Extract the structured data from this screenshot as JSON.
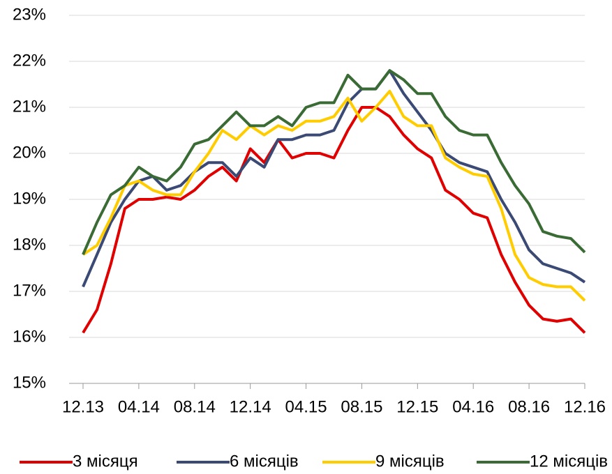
{
  "chart_data": {
    "type": "line",
    "categories": [
      "12.13",
      null,
      null,
      null,
      "04.14",
      null,
      null,
      null,
      "08.14",
      null,
      null,
      null,
      "12.14",
      null,
      null,
      null,
      "04.15",
      null,
      null,
      null,
      "08.15",
      null,
      null,
      null,
      "12.15",
      null,
      null,
      null,
      "04.16",
      null,
      null,
      null,
      "08.16",
      null,
      null,
      null,
      "12.16"
    ],
    "series": [
      {
        "name": "3 місяця",
        "color": "#e00000",
        "values": [
          16.1,
          16.6,
          17.6,
          18.8,
          19.0,
          19.0,
          19.05,
          19.0,
          19.2,
          19.5,
          19.7,
          19.4,
          20.1,
          19.8,
          20.3,
          19.9,
          20.0,
          20.0,
          19.9,
          20.5,
          21.0,
          21.0,
          20.8,
          20.4,
          20.1,
          19.9,
          19.2,
          19.0,
          18.7,
          18.6,
          17.8,
          17.2,
          16.7,
          16.4,
          16.35,
          16.4,
          16.1
        ]
      },
      {
        "name": "6 місяців",
        "color": "#3a4a74",
        "values": [
          17.1,
          17.8,
          18.5,
          19.0,
          19.4,
          19.5,
          19.2,
          19.3,
          19.6,
          19.8,
          19.8,
          19.5,
          19.9,
          19.7,
          20.3,
          20.3,
          20.4,
          20.4,
          20.5,
          21.1,
          21.4,
          21.4,
          21.8,
          21.3,
          20.9,
          20.5,
          20.0,
          19.8,
          19.7,
          19.6,
          19.0,
          18.5,
          17.9,
          17.6,
          17.5,
          17.4,
          17.2
        ]
      },
      {
        "name": "9 місяців",
        "color": "#ffcc00",
        "values": [
          17.8,
          18.0,
          18.6,
          19.3,
          19.4,
          19.2,
          19.1,
          19.1,
          19.6,
          20.0,
          20.5,
          20.3,
          20.6,
          20.4,
          20.6,
          20.5,
          20.7,
          20.7,
          20.8,
          21.2,
          20.7,
          21.0,
          21.35,
          20.8,
          20.6,
          20.6,
          19.9,
          19.7,
          19.55,
          19.5,
          18.8,
          17.8,
          17.3,
          17.15,
          17.1,
          17.1,
          16.8
        ]
      },
      {
        "name": "12 місяців",
        "color": "#3a6b35",
        "values": [
          17.8,
          18.5,
          19.1,
          19.3,
          19.7,
          19.5,
          19.4,
          19.7,
          20.2,
          20.3,
          20.6,
          20.9,
          20.6,
          20.6,
          20.8,
          20.6,
          21.0,
          21.1,
          21.1,
          21.7,
          21.4,
          21.4,
          21.8,
          21.6,
          21.3,
          21.3,
          20.8,
          20.5,
          20.4,
          20.4,
          19.8,
          19.3,
          18.9,
          18.3,
          18.2,
          18.15,
          17.85
        ]
      }
    ],
    "ylim": [
      15,
      23
    ],
    "yticks": [
      {
        "value": 15,
        "label": "15%"
      },
      {
        "value": 16,
        "label": "16%"
      },
      {
        "value": 17,
        "label": "17%"
      },
      {
        "value": 18,
        "label": "18%"
      },
      {
        "value": 19,
        "label": "19%"
      },
      {
        "value": 20,
        "label": "20%"
      },
      {
        "value": 21,
        "label": "21%"
      },
      {
        "value": 22,
        "label": "22%"
      },
      {
        "value": 23,
        "label": "23%"
      }
    ],
    "grid": true,
    "legend": "bottom"
  }
}
